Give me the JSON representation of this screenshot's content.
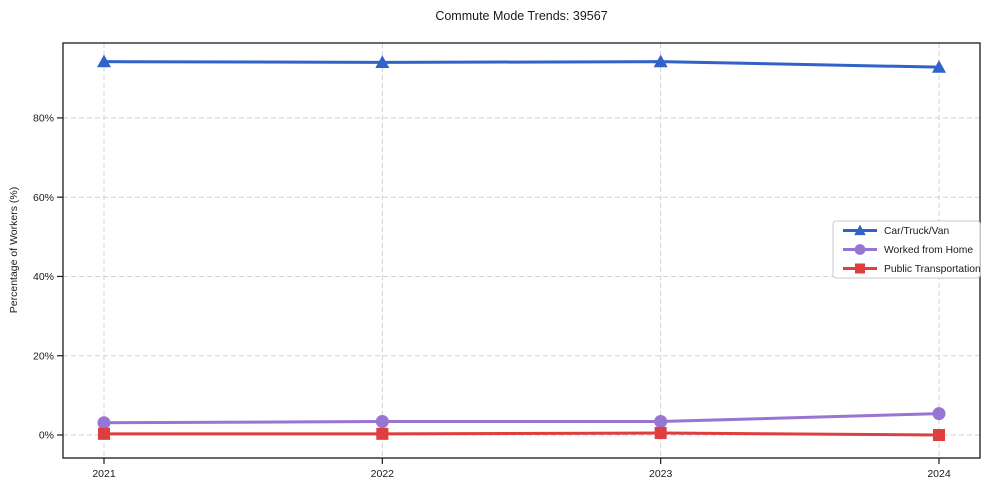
{
  "chart_data": {
    "type": "line",
    "title": "Commute Mode Trends: 39567",
    "xlabel": "",
    "ylabel": "Percentage of Workers (%)",
    "categories": [
      "2021",
      "2022",
      "2023",
      "2024"
    ],
    "y_ticks": [
      0,
      20,
      40,
      60,
      80
    ],
    "y_tick_labels": [
      "0%",
      "20%",
      "40%",
      "60%",
      "80%"
    ],
    "ylim": [
      -5.8,
      98.9
    ],
    "grid": true,
    "grid_style": "dashed",
    "legend_position": "center-right",
    "series": [
      {
        "name": "Car/Truck/Van",
        "color": "#3062c8",
        "marker": "triangle",
        "values": [
          94.2,
          94.0,
          94.2,
          92.8
        ]
      },
      {
        "name": "Worked from Home",
        "color": "#9874d3",
        "marker": "circle",
        "values": [
          3.1,
          3.4,
          3.4,
          5.4
        ]
      },
      {
        "name": "Public Transportation",
        "color": "#de3e3e",
        "marker": "square",
        "values": [
          0.3,
          0.3,
          0.5,
          0.0
        ]
      }
    ],
    "colors": {
      "axis": "#1a1a1a",
      "grid": "#d0d0d0",
      "legend_border": "#c9c9c9",
      "text": "#1a1a1a",
      "background": "#ffffff"
    }
  }
}
